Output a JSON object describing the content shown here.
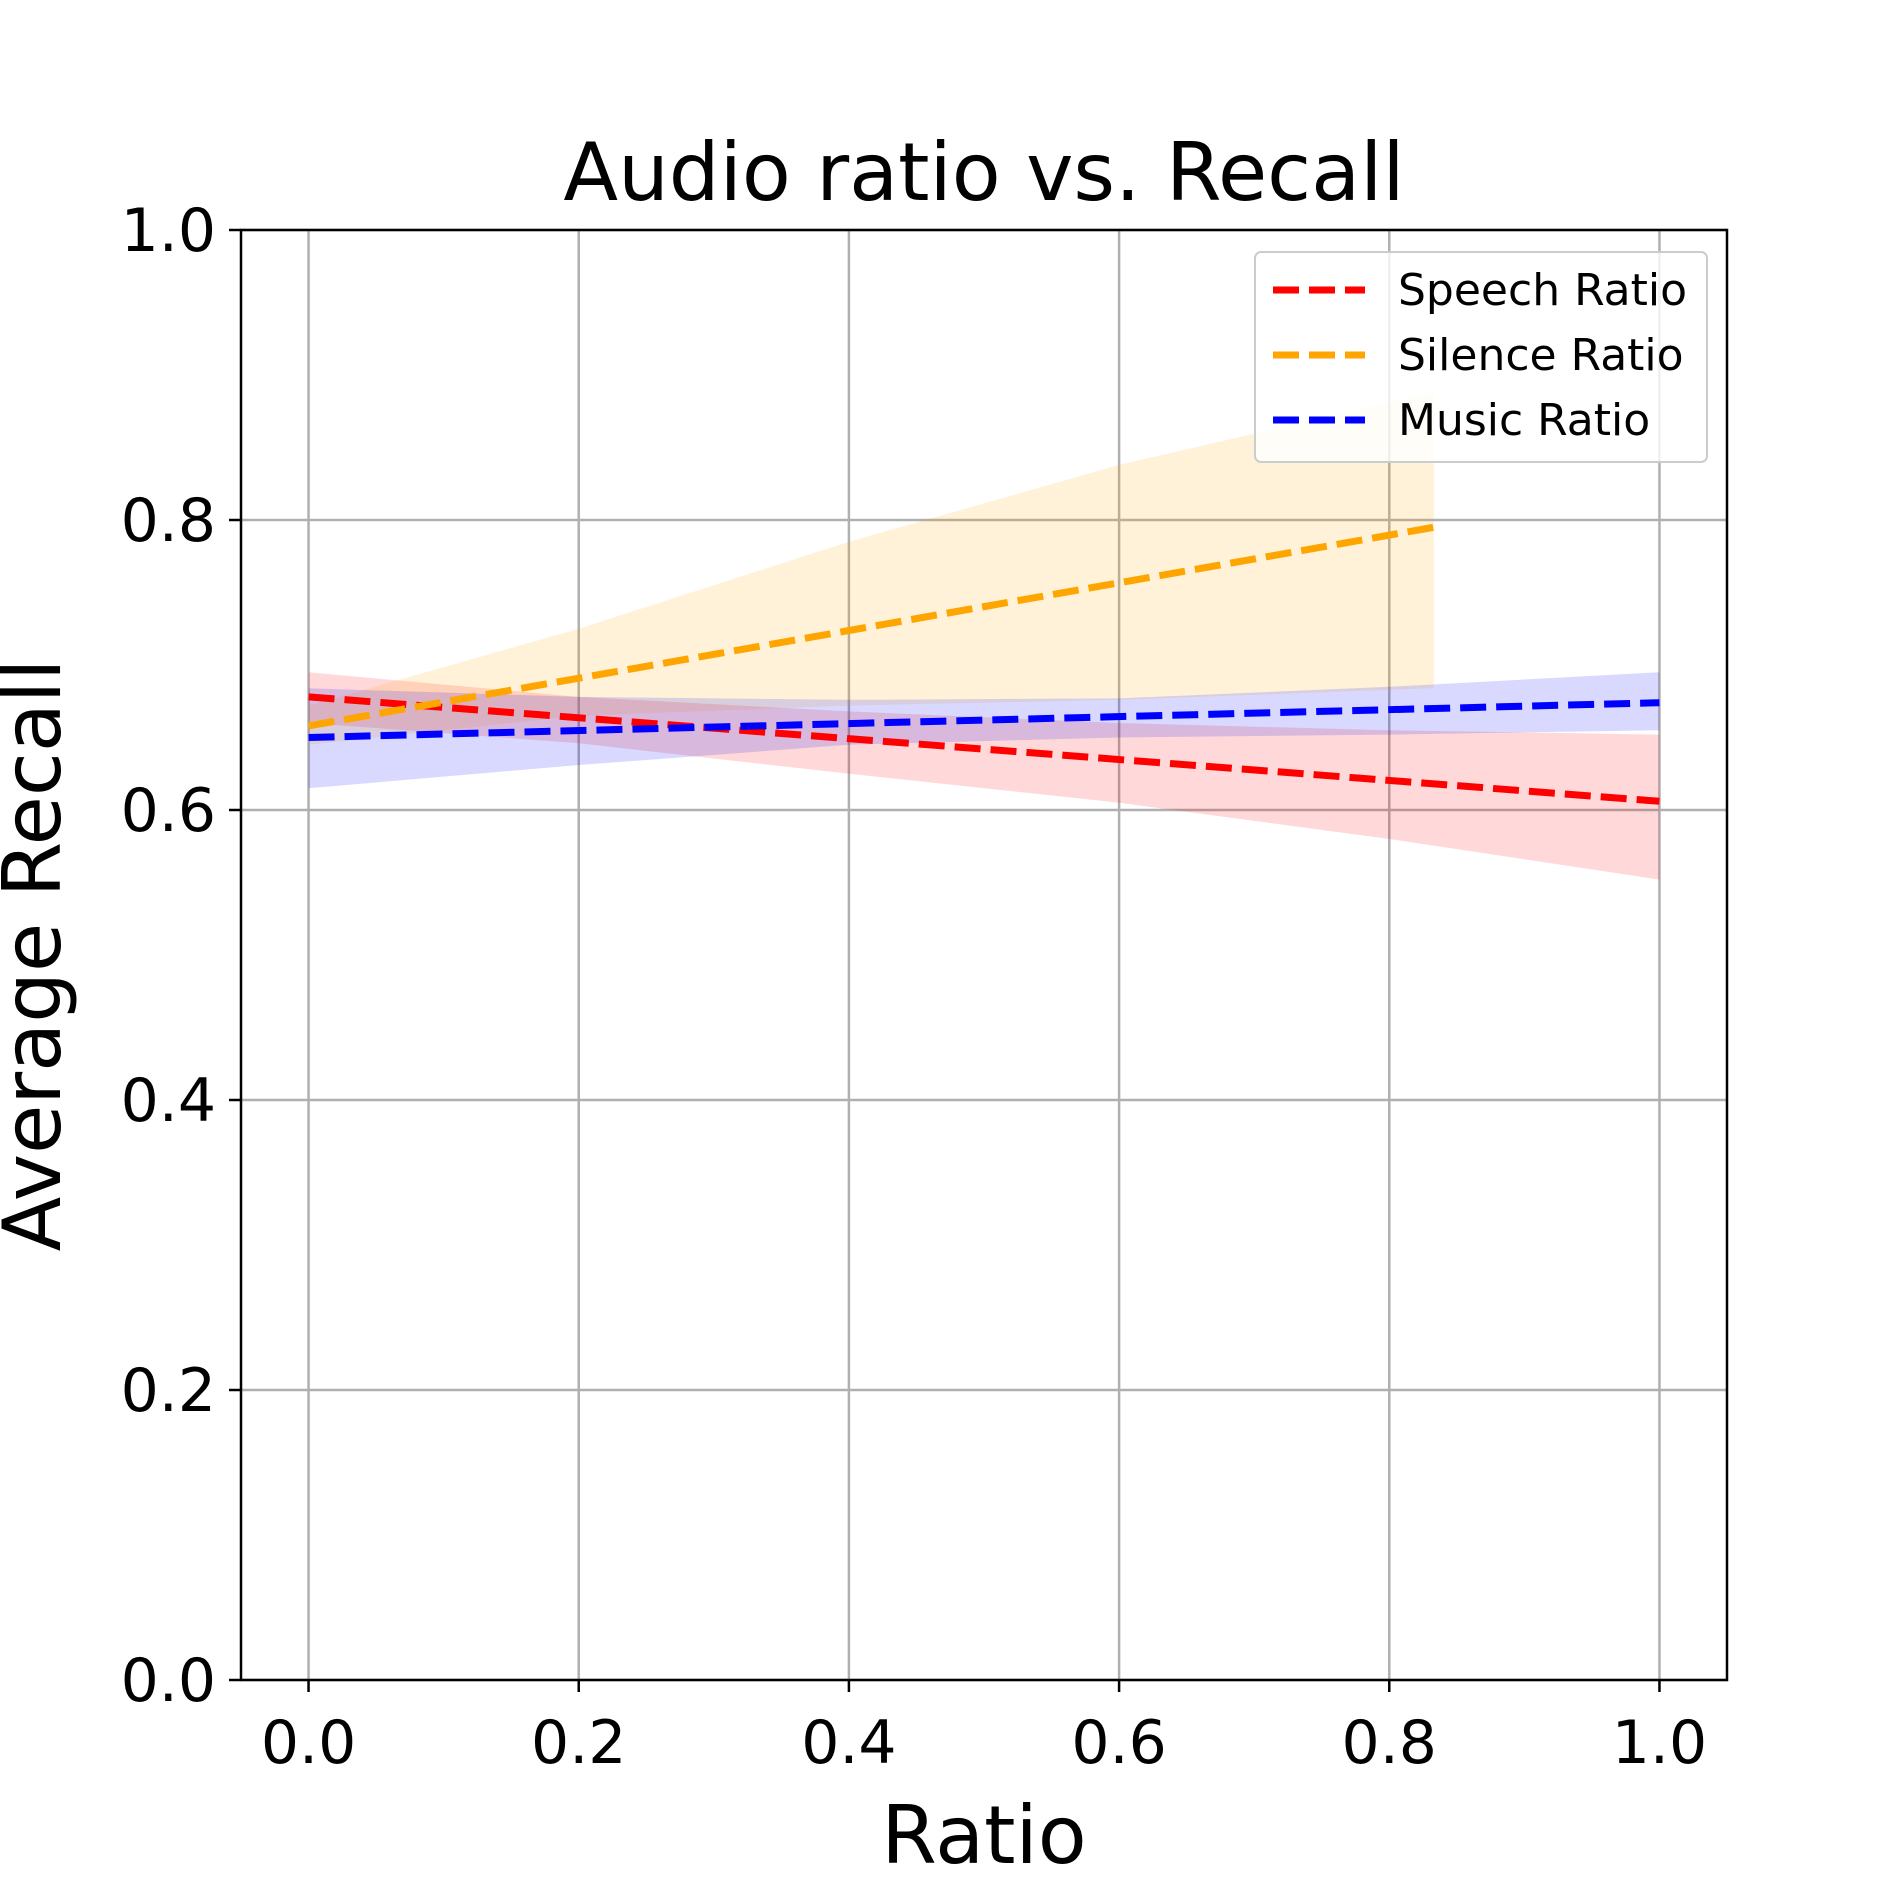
{
  "chart_data": {
    "type": "line",
    "title": "Audio ratio vs. Recall",
    "xlabel": "Ratio",
    "ylabel": "Average Recall",
    "xlim": [
      -0.05,
      1.05
    ],
    "ylim": [
      0.0,
      1.0
    ],
    "xticks": [
      0.0,
      0.2,
      0.4,
      0.6,
      0.8,
      1.0
    ],
    "xtick_labels": [
      "0.0",
      "0.2",
      "0.4",
      "0.6",
      "0.8",
      "1.0"
    ],
    "yticks": [
      0.0,
      0.2,
      0.4,
      0.6,
      0.8,
      1.0
    ],
    "ytick_labels": [
      "0.0",
      "0.2",
      "0.4",
      "0.6",
      "0.8",
      "1.0"
    ],
    "grid": true,
    "legend_position": "top-right",
    "series": [
      {
        "name": "Speech Ratio",
        "color": "#ff0000",
        "fill_color": "#ff0000",
        "line_style": "dashed",
        "x": [
          0.0,
          1.0
        ],
        "y": [
          0.678,
          0.606
        ],
        "band_x": [
          0.0,
          0.2,
          0.4,
          0.6,
          0.8,
          1.0
        ],
        "band_lower": [
          0.66,
          0.646,
          0.625,
          0.605,
          0.58,
          0.552
        ],
        "band_upper": [
          0.695,
          0.678,
          0.668,
          0.66,
          0.655,
          0.652
        ]
      },
      {
        "name": "Silence Ratio",
        "color": "#ffa500",
        "fill_color": "#ffa500",
        "line_style": "dashed",
        "x": [
          0.0,
          0.833
        ],
        "y": [
          0.658,
          0.795
        ],
        "band_x": [
          0.0,
          0.2,
          0.4,
          0.6,
          0.833
        ],
        "band_lower": [
          0.645,
          0.665,
          0.672,
          0.676,
          0.684
        ],
        "band_upper": [
          0.672,
          0.725,
          0.785,
          0.838,
          0.888
        ]
      },
      {
        "name": "Music Ratio",
        "color": "#0000ff",
        "fill_color": "#0000ff",
        "line_style": "dashed",
        "x": [
          0.0,
          1.0
        ],
        "y": [
          0.65,
          0.674
        ],
        "band_x": [
          0.0,
          0.2,
          0.4,
          0.6,
          0.8,
          1.0
        ],
        "band_lower": [
          0.615,
          0.631,
          0.645,
          0.65,
          0.652,
          0.655
        ],
        "band_upper": [
          0.684,
          0.678,
          0.676,
          0.677,
          0.685,
          0.695
        ]
      }
    ]
  }
}
